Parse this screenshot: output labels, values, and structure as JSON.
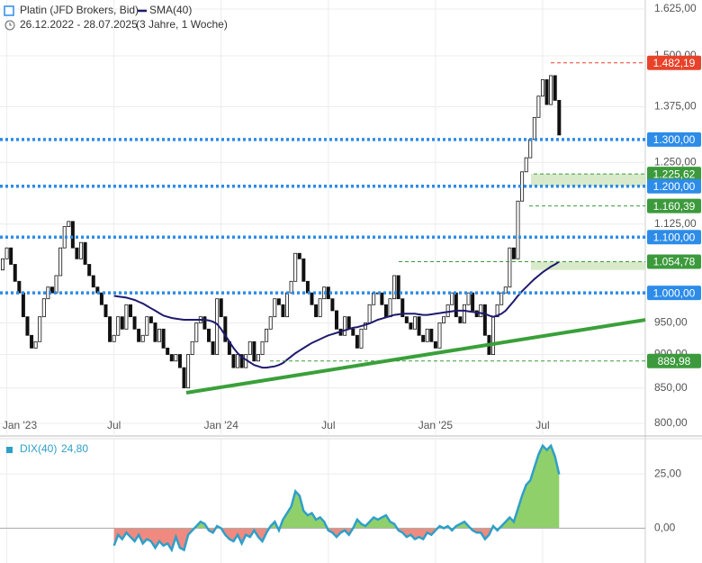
{
  "chart_data": {
    "type": "candlestick",
    "title": "Platin (JFD Brokers, Bid)",
    "date_range": "26.12.2022 - 28.07.2025",
    "period": "(3 Jahre, 1 Woche)",
    "log_scale": true,
    "grid": true,
    "up_color": "#ffffff",
    "down_color": "#111111",
    "categories": [
      null,
      "Jan '23",
      null,
      null,
      null,
      null,
      null,
      null,
      null,
      null,
      null,
      null,
      null,
      null,
      null,
      null,
      null,
      null,
      null,
      null,
      null,
      null,
      null,
      null,
      null,
      null,
      null,
      "Jul",
      null,
      null,
      null,
      null,
      null,
      null,
      null,
      null,
      null,
      null,
      null,
      null,
      null,
      null,
      null,
      null,
      null,
      null,
      null,
      null,
      null,
      null,
      null,
      null,
      null,
      "Jan '24",
      null,
      null,
      null,
      null,
      null,
      null,
      null,
      null,
      null,
      null,
      null,
      null,
      null,
      null,
      null,
      null,
      null,
      null,
      null,
      null,
      null,
      null,
      null,
      null,
      null,
      "Jul",
      null,
      null,
      null,
      null,
      null,
      null,
      null,
      null,
      null,
      null,
      null,
      null,
      null,
      null,
      null,
      null,
      null,
      null,
      null,
      null,
      null,
      null,
      null,
      null,
      null,
      "Jan '25",
      null,
      null,
      null,
      null,
      null,
      null,
      null,
      null,
      null,
      null,
      null,
      null,
      null,
      null,
      null,
      null,
      null,
      null,
      null,
      null,
      null,
      null,
      null,
      null,
      null,
      "Jul",
      null,
      null,
      null,
      null
    ],
    "open": [
      1040,
      1060,
      1080,
      1050,
      1020,
      1000,
      960,
      930,
      910,
      920,
      960,
      990,
      1010,
      1000,
      1030,
      1080,
      1120,
      1130,
      1080,
      1060,
      1090,
      1050,
      1030,
      1010,
      1000,
      980,
      960,
      920,
      930,
      960,
      940,
      980,
      960,
      940,
      920,
      930,
      960,
      950,
      920,
      940,
      910,
      900,
      890,
      900,
      880,
      850,
      900,
      920,
      950,
      960,
      940,
      920,
      900,
      990,
      960,
      920,
      900,
      880,
      900,
      880,
      900,
      920,
      890,
      900,
      920,
      940,
      960,
      990,
      980,
      960,
      1000,
      1020,
      1070,
      1060,
      1020,
      1000,
      980,
      960,
      990,
      1010,
      990,
      970,
      940,
      930,
      960,
      940,
      930,
      910,
      940,
      950,
      980,
      1000,
      1000,
      980,
      960,
      990,
      1030,
      990,
      960,
      950,
      940,
      960,
      930,
      920,
      940,
      920,
      910,
      950,
      960,
      980,
      1000,
      960,
      950,
      980,
      1000,
      970,
      960,
      980,
      930,
      900,
      960,
      980,
      1000,
      1010,
      1080,
      1060,
      1170,
      1230,
      1260,
      1300,
      1350,
      1400,
      1440,
      1380,
      1450,
      1390
    ],
    "close": [
      1060,
      1080,
      1050,
      1020,
      1000,
      960,
      930,
      910,
      920,
      960,
      990,
      1010,
      1000,
      1030,
      1080,
      1120,
      1130,
      1080,
      1060,
      1090,
      1050,
      1030,
      1010,
      1000,
      980,
      960,
      920,
      930,
      960,
      940,
      980,
      960,
      940,
      920,
      930,
      960,
      950,
      920,
      940,
      910,
      900,
      890,
      900,
      880,
      850,
      900,
      920,
      950,
      960,
      940,
      920,
      900,
      990,
      960,
      920,
      900,
      880,
      900,
      880,
      900,
      920,
      890,
      900,
      920,
      940,
      960,
      990,
      980,
      960,
      1000,
      1020,
      1070,
      1060,
      1020,
      1000,
      980,
      960,
      990,
      1010,
      990,
      970,
      940,
      930,
      960,
      940,
      930,
      910,
      940,
      950,
      980,
      1000,
      1000,
      980,
      960,
      990,
      1030,
      990,
      960,
      950,
      940,
      960,
      930,
      920,
      940,
      920,
      910,
      950,
      960,
      980,
      1000,
      960,
      950,
      980,
      1000,
      970,
      960,
      980,
      930,
      900,
      960,
      980,
      1000,
      1010,
      1080,
      1060,
      1170,
      1230,
      1260,
      1300,
      1350,
      1400,
      1440,
      1380,
      1450,
      1390,
      1310
    ],
    "sma": {
      "name": "SMA(40)",
      "color": "#1f1a6e",
      "values": [
        null,
        null,
        null,
        null,
        null,
        null,
        null,
        null,
        null,
        null,
        null,
        null,
        null,
        null,
        null,
        null,
        null,
        null,
        null,
        null,
        null,
        null,
        null,
        null,
        null,
        null,
        null,
        995,
        994,
        993,
        992,
        990,
        988,
        985,
        982,
        978,
        974,
        970,
        966,
        962,
        960,
        958,
        957,
        956,
        955,
        955,
        955,
        955,
        955,
        955,
        954,
        952,
        948,
        940,
        930,
        920,
        910,
        902,
        896,
        892,
        888,
        884,
        882,
        880,
        880,
        881,
        882,
        884,
        887,
        892,
        897,
        902,
        906,
        910,
        914,
        918,
        921,
        924,
        927,
        930,
        932,
        934,
        936,
        938,
        940,
        942,
        943,
        945,
        947,
        949,
        952,
        955,
        957,
        959,
        961,
        963,
        964,
        965,
        965,
        965,
        965,
        964,
        963,
        963,
        964,
        965,
        966,
        967,
        968,
        969,
        970,
        970,
        970,
        969,
        968,
        967,
        966,
        965,
        962,
        960,
        962,
        965,
        970,
        978,
        986,
        995,
        1003,
        1010,
        1017,
        1024,
        1030,
        1036,
        1041,
        1046,
        1050,
        1054.78
      ]
    },
    "ylim": [
      800,
      1625
    ],
    "yticks": [
      {
        "value": 800,
        "label": "800,00"
      },
      {
        "value": 850,
        "label": "850,00"
      },
      {
        "value": 900,
        "label": "900,00"
      },
      {
        "value": 950,
        "label": "950,00"
      },
      {
        "value": 1000,
        "label": "1.000,00"
      },
      {
        "value": 1125,
        "label": "1.125,00"
      },
      {
        "value": 1250,
        "label": "1.250,00"
      },
      {
        "value": 1375,
        "label": "1.375,00"
      },
      {
        "value": 1500,
        "label": "1.500,00"
      },
      {
        "value": 1625,
        "label": "1.625,00"
      }
    ],
    "levels": [
      {
        "value": 1482.19,
        "label": "1.482,19",
        "color": "#e8432a",
        "style": "dashed"
      },
      {
        "value": 1300,
        "label": "1.300,00",
        "color": "#2d8ce8",
        "style": "dotted"
      },
      {
        "value": 1225.62,
        "label": "1.225,62",
        "color": "#3c9a3c",
        "style": "dashed"
      },
      {
        "value": 1200,
        "label": "1.200,00",
        "color": "#2d8ce8",
        "style": "dotted"
      },
      {
        "value": 1160.39,
        "label": "1.160,39",
        "color": "#3c9a3c",
        "style": "dashed"
      },
      {
        "value": 1100,
        "label": "1.100,00",
        "color": "#2d8ce8",
        "style": "dotted"
      },
      {
        "value": 1054.78,
        "label": "1.054,78",
        "color": "#3c9a3c",
        "style": "dashed"
      },
      {
        "value": 1000,
        "label": "1.000,00",
        "color": "#2d8ce8",
        "style": "dotted"
      },
      {
        "value": 889.98,
        "label": "889,98",
        "color": "#3c9a3c",
        "style": "dashed"
      }
    ],
    "zones": [
      {
        "from": 1200,
        "to": 1225.62,
        "color": "#d4e8c4"
      },
      {
        "from": 1040,
        "to": 1054.78,
        "color": "#d4e8c4"
      }
    ],
    "trend_line": {
      "color": "#3aa03a",
      "values": [
        843,
        955
      ]
    },
    "indicator": {
      "name": "DIX(40)",
      "last_label": "24,80",
      "color": "#2f9fc8",
      "up_color": "#8fd06a",
      "down_color": "#f08a80",
      "ylim": [
        -16,
        40
      ],
      "yticks": [
        {
          "value": 0,
          "label": "0,00"
        },
        {
          "value": 25,
          "label": "25,00"
        }
      ],
      "values": [
        null,
        null,
        null,
        null,
        null,
        null,
        null,
        null,
        null,
        null,
        null,
        null,
        null,
        null,
        null,
        null,
        null,
        null,
        null,
        null,
        null,
        null,
        null,
        null,
        null,
        null,
        null,
        -8,
        -3,
        -5,
        -2,
        -4,
        -6,
        -3,
        -7,
        -5,
        -6,
        -9,
        -6,
        -8,
        -7,
        -10,
        -4,
        -9,
        -10,
        -3,
        -1,
        1,
        3,
        2,
        -1,
        -2,
        1,
        0,
        -3,
        -5,
        -6,
        -3,
        -7,
        -3,
        -4,
        -1,
        -4,
        -6,
        -2,
        1,
        3,
        -1,
        4,
        7,
        10,
        17,
        15,
        8,
        6,
        7,
        4,
        5,
        3,
        -1,
        -2,
        -4,
        -2,
        -1,
        -3,
        0,
        4,
        2,
        1,
        3,
        5,
        4,
        5,
        6,
        3,
        2,
        -1,
        -2,
        -4,
        -3,
        -5,
        -4,
        -5,
        -2,
        -3,
        -1,
        1,
        0,
        1,
        -1,
        1,
        2,
        3,
        1,
        -1,
        -2,
        -2,
        -5,
        -3,
        1,
        -1,
        1,
        3,
        5,
        3,
        9,
        15,
        20,
        22,
        28,
        34,
        38,
        36,
        38,
        33,
        24.8
      ]
    }
  }
}
